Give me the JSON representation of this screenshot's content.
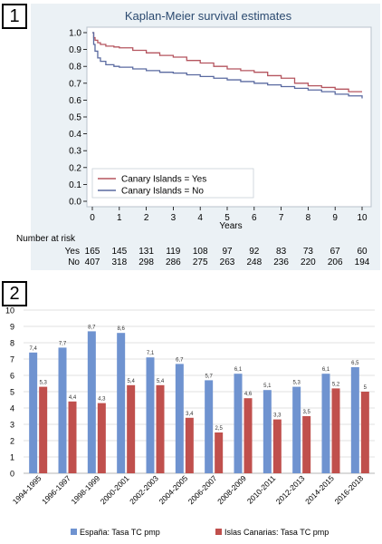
{
  "panels": [
    {
      "badge": "1"
    },
    {
      "badge": "2"
    }
  ],
  "chart_data": [
    {
      "type": "line",
      "title": "Kaplan-Meier survival estimates",
      "xlabel": "Years",
      "ylabel": "",
      "xlim": [
        0,
        10
      ],
      "ylim": [
        0,
        1
      ],
      "x_ticks": [
        "0",
        "1",
        "2",
        "3",
        "4",
        "5",
        "6",
        "7",
        "8",
        "9",
        "10"
      ],
      "y_ticks": [
        "0.0",
        "0.1",
        "0.2",
        "0.3",
        "0.4",
        "0.5",
        "0.6",
        "0.7",
        "0.8",
        "0.9",
        "1.0"
      ],
      "grid": false,
      "legend_position": "bottom-left",
      "series": [
        {
          "name": "Canary Islands = Yes",
          "color": "#b5555f",
          "x": [
            0,
            0.05,
            0.1,
            0.2,
            0.3,
            0.5,
            0.8,
            1,
            1.5,
            2,
            2.5,
            3,
            3.5,
            4,
            4.5,
            5,
            5.5,
            6,
            6.5,
            7,
            7.5,
            8,
            8.5,
            9,
            9.5,
            10
          ],
          "y": [
            1.0,
            0.97,
            0.955,
            0.94,
            0.93,
            0.92,
            0.915,
            0.91,
            0.895,
            0.88,
            0.865,
            0.855,
            0.835,
            0.82,
            0.8,
            0.785,
            0.775,
            0.765,
            0.745,
            0.73,
            0.7,
            0.685,
            0.675,
            0.665,
            0.65,
            0.65
          ]
        },
        {
          "name": "Canary Islands = No",
          "color": "#5a6aa0",
          "x": [
            0,
            0.05,
            0.1,
            0.2,
            0.3,
            0.5,
            0.8,
            1,
            1.5,
            2,
            2.5,
            3,
            3.5,
            4,
            4.5,
            5,
            5.5,
            6,
            6.5,
            7,
            7.5,
            8,
            8.5,
            9,
            9.5,
            10
          ],
          "y": [
            1.0,
            0.93,
            0.89,
            0.85,
            0.83,
            0.81,
            0.8,
            0.795,
            0.785,
            0.775,
            0.765,
            0.76,
            0.75,
            0.74,
            0.73,
            0.72,
            0.71,
            0.7,
            0.69,
            0.68,
            0.67,
            0.66,
            0.65,
            0.635,
            0.625,
            0.61
          ]
        }
      ],
      "risk_table": {
        "title": "Number at risk",
        "rows": [
          {
            "label": "Yes",
            "values": [
              "165",
              "145",
              "131",
              "119",
              "108",
              "97",
              "92",
              "83",
              "73",
              "67",
              "60"
            ]
          },
          {
            "label": "No",
            "values": [
              "407",
              "318",
              "298",
              "286",
              "275",
              "263",
              "248",
              "236",
              "220",
              "206",
              "194"
            ]
          }
        ]
      }
    },
    {
      "type": "bar",
      "title": "",
      "xlabel": "",
      "ylabel": "",
      "ylim": [
        0,
        10
      ],
      "y_ticks": [
        "0",
        "1",
        "2",
        "3",
        "4",
        "5",
        "6",
        "7",
        "8",
        "9",
        "10"
      ],
      "grid": true,
      "legend_position": "bottom",
      "categories": [
        "1994-1995",
        "1996-1997",
        "1998-1999",
        "2000-2001",
        "2002-2003",
        "2004-2005",
        "2006-2007",
        "2008-2009",
        "2010-2011",
        "2012-2013",
        "2014-2015",
        "2016-2018"
      ],
      "series": [
        {
          "name": "España: Tasa TC pmp",
          "color": "#6f93d0",
          "values": [
            7.4,
            7.7,
            8.7,
            8.6,
            7.1,
            6.7,
            5.7,
            6.1,
            5.1,
            5.3,
            6.1,
            6.5
          ],
          "labels": [
            "7,4",
            "7,7",
            "8,7",
            "8,6",
            "7,1",
            "6,7",
            "5,7",
            "6,1",
            "5,1",
            "5,3",
            "6,1",
            "6,5"
          ]
        },
        {
          "name": "Islas Canarias: Tasa TC pmp",
          "color": "#c0504d",
          "values": [
            5.3,
            4.4,
            4.3,
            5.4,
            5.4,
            3.4,
            2.5,
            4.6,
            3.3,
            3.5,
            5.2,
            5
          ],
          "labels": [
            "5,3",
            "4,4",
            "4,3",
            "5,4",
            "5,4",
            "3,4",
            "2,5",
            "4,6",
            "3,3",
            "3,5",
            "5,2",
            "5"
          ]
        }
      ]
    }
  ]
}
